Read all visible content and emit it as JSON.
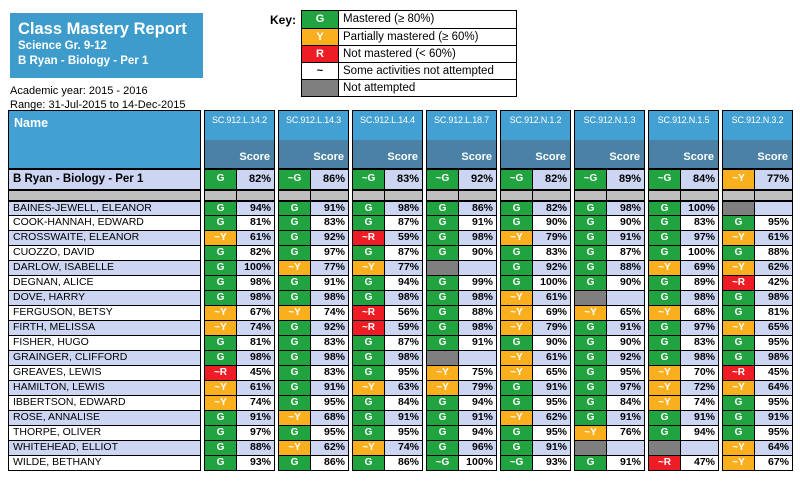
{
  "report": {
    "title": "Class Mastery Report",
    "subtitle1": "Science Gr. 9-12",
    "subtitle2": "B Ryan - Biology - Per 1",
    "academic_year": "Academic year: 2015 - 2016",
    "range": "Range: 31-Jul-2015 to 14-Dec-2015"
  },
  "key": {
    "label": "Key:",
    "items": [
      {
        "badge": "G",
        "color": "#21A33F",
        "text_color": "#FFFFFF",
        "label": "Mastered (≥ 80%)"
      },
      {
        "badge": "Y",
        "color": "#FAAF1E",
        "text_color": "#FFFFFF",
        "label": "Partially mastered (≥ 60%)"
      },
      {
        "badge": "R",
        "color": "#EE1C24",
        "text_color": "#FFFFFF",
        "label": "Not mastered (< 60%)"
      },
      {
        "badge": "~",
        "color": "#FFFFFF",
        "text_color": "#000000",
        "label": "Some activities not attempted"
      },
      {
        "badge": "",
        "color": "#7F7F7F",
        "text_color": "#000000",
        "label": "Not attempted"
      }
    ]
  },
  "colors": {
    "mastered": "#21A33F",
    "partially_mastered": "#FAAF1E",
    "not_mastered": "#EE1C24",
    "not_attempted": "#7F7F7F",
    "divider_gray": "#BFBFBF",
    "row_alt_lavender": "#CCD6F2",
    "header_light_blue": "#42A0D3",
    "header_steel_blue": "#4A81A5",
    "title_blue": "#3E9CCC"
  },
  "table": {
    "name_header": "Name",
    "score_header": "Score",
    "columns": [
      "SC.912.L.14.2",
      "SC.912.L.14.3",
      "SC.912.L.14.4",
      "SC.912.L.18.7",
      "SC.912.N.1.2",
      "SC.912.N.1.3",
      "SC.912.N.1.5",
      "SC.912.N.3.2"
    ],
    "summary": {
      "name": "B Ryan - Biology - Per 1",
      "cells": [
        {
          "rating": "G",
          "score": "82%"
        },
        {
          "rating": "~G",
          "score": "86%"
        },
        {
          "rating": "~G",
          "score": "83%"
        },
        {
          "rating": "~G",
          "score": "92%"
        },
        {
          "rating": "~G",
          "score": "82%"
        },
        {
          "rating": "~G",
          "score": "89%"
        },
        {
          "rating": "~G",
          "score": "84%"
        },
        {
          "rating": "~Y",
          "score": "77%"
        }
      ]
    },
    "students": [
      {
        "name": "BAINES-JEWELL, ELEANOR",
        "cells": [
          {
            "rating": "G",
            "score": "94%"
          },
          {
            "rating": "G",
            "score": "91%"
          },
          {
            "rating": "G",
            "score": "98%"
          },
          {
            "rating": "G",
            "score": "86%"
          },
          {
            "rating": "G",
            "score": "82%"
          },
          {
            "rating": "G",
            "score": "98%"
          },
          {
            "rating": "G",
            "score": "100%"
          },
          {
            "rating": "NA",
            "score": ""
          }
        ]
      },
      {
        "name": "COOK-HANNAH, EDWARD",
        "cells": [
          {
            "rating": "G",
            "score": "81%"
          },
          {
            "rating": "G",
            "score": "83%"
          },
          {
            "rating": "G",
            "score": "87%"
          },
          {
            "rating": "G",
            "score": "91%"
          },
          {
            "rating": "G",
            "score": "90%"
          },
          {
            "rating": "G",
            "score": "90%"
          },
          {
            "rating": "G",
            "score": "83%"
          },
          {
            "rating": "G",
            "score": "95%"
          }
        ]
      },
      {
        "name": "CROSSWAITE, ELEANOR",
        "cells": [
          {
            "rating": "~Y",
            "score": "61%"
          },
          {
            "rating": "G",
            "score": "92%"
          },
          {
            "rating": "~R",
            "score": "59%"
          },
          {
            "rating": "G",
            "score": "98%"
          },
          {
            "rating": "~Y",
            "score": "79%"
          },
          {
            "rating": "G",
            "score": "91%"
          },
          {
            "rating": "G",
            "score": "97%"
          },
          {
            "rating": "~Y",
            "score": "61%"
          }
        ]
      },
      {
        "name": "CUOZZO, DAVID",
        "cells": [
          {
            "rating": "G",
            "score": "82%"
          },
          {
            "rating": "G",
            "score": "97%"
          },
          {
            "rating": "G",
            "score": "87%"
          },
          {
            "rating": "G",
            "score": "90%"
          },
          {
            "rating": "G",
            "score": "83%"
          },
          {
            "rating": "G",
            "score": "87%"
          },
          {
            "rating": "G",
            "score": "100%"
          },
          {
            "rating": "G",
            "score": "88%"
          }
        ]
      },
      {
        "name": "DARLOW, ISABELLE",
        "cells": [
          {
            "rating": "G",
            "score": "100%"
          },
          {
            "rating": "~Y",
            "score": "77%"
          },
          {
            "rating": "~Y",
            "score": "77%"
          },
          {
            "rating": "NA",
            "score": ""
          },
          {
            "rating": "G",
            "score": "92%"
          },
          {
            "rating": "G",
            "score": "88%"
          },
          {
            "rating": "~Y",
            "score": "69%"
          },
          {
            "rating": "~Y",
            "score": "62%"
          }
        ]
      },
      {
        "name": "DEGNAN, ALICE",
        "cells": [
          {
            "rating": "G",
            "score": "98%"
          },
          {
            "rating": "G",
            "score": "91%"
          },
          {
            "rating": "G",
            "score": "94%"
          },
          {
            "rating": "G",
            "score": "99%"
          },
          {
            "rating": "G",
            "score": "100%"
          },
          {
            "rating": "G",
            "score": "90%"
          },
          {
            "rating": "G",
            "score": "89%"
          },
          {
            "rating": "~R",
            "score": "42%"
          }
        ]
      },
      {
        "name": "DOVE, HARRY",
        "cells": [
          {
            "rating": "G",
            "score": "98%"
          },
          {
            "rating": "G",
            "score": "98%"
          },
          {
            "rating": "G",
            "score": "98%"
          },
          {
            "rating": "G",
            "score": "98%"
          },
          {
            "rating": "~Y",
            "score": "61%"
          },
          {
            "rating": "NA",
            "score": ""
          },
          {
            "rating": "G",
            "score": "98%"
          },
          {
            "rating": "G",
            "score": "98%"
          }
        ]
      },
      {
        "name": "FERGUSON, BETSY",
        "cells": [
          {
            "rating": "~Y",
            "score": "67%"
          },
          {
            "rating": "~Y",
            "score": "74%"
          },
          {
            "rating": "~R",
            "score": "56%"
          },
          {
            "rating": "G",
            "score": "88%"
          },
          {
            "rating": "~Y",
            "score": "69%"
          },
          {
            "rating": "~Y",
            "score": "65%"
          },
          {
            "rating": "~Y",
            "score": "68%"
          },
          {
            "rating": "G",
            "score": "81%"
          }
        ]
      },
      {
        "name": "FIRTH, MELISSA",
        "cells": [
          {
            "rating": "~Y",
            "score": "74%"
          },
          {
            "rating": "G",
            "score": "92%"
          },
          {
            "rating": "~R",
            "score": "59%"
          },
          {
            "rating": "G",
            "score": "98%"
          },
          {
            "rating": "~Y",
            "score": "79%"
          },
          {
            "rating": "G",
            "score": "91%"
          },
          {
            "rating": "G",
            "score": "97%"
          },
          {
            "rating": "~Y",
            "score": "65%"
          }
        ]
      },
      {
        "name": "FISHER, HUGO",
        "cells": [
          {
            "rating": "G",
            "score": "81%"
          },
          {
            "rating": "G",
            "score": "83%"
          },
          {
            "rating": "G",
            "score": "87%"
          },
          {
            "rating": "G",
            "score": "91%"
          },
          {
            "rating": "G",
            "score": "90%"
          },
          {
            "rating": "G",
            "score": "90%"
          },
          {
            "rating": "G",
            "score": "83%"
          },
          {
            "rating": "G",
            "score": "95%"
          }
        ]
      },
      {
        "name": "GRAINGER, CLIFFORD",
        "cells": [
          {
            "rating": "G",
            "score": "98%"
          },
          {
            "rating": "G",
            "score": "98%"
          },
          {
            "rating": "G",
            "score": "98%"
          },
          {
            "rating": "NA",
            "score": ""
          },
          {
            "rating": "~Y",
            "score": "61%"
          },
          {
            "rating": "G",
            "score": "92%"
          },
          {
            "rating": "G",
            "score": "98%"
          },
          {
            "rating": "G",
            "score": "98%"
          }
        ]
      },
      {
        "name": "GREAVES, LEWIS",
        "cells": [
          {
            "rating": "~R",
            "score": "45%"
          },
          {
            "rating": "G",
            "score": "83%"
          },
          {
            "rating": "G",
            "score": "95%"
          },
          {
            "rating": "~Y",
            "score": "75%"
          },
          {
            "rating": "~Y",
            "score": "65%"
          },
          {
            "rating": "G",
            "score": "95%"
          },
          {
            "rating": "~Y",
            "score": "70%"
          },
          {
            "rating": "~R",
            "score": "45%"
          }
        ]
      },
      {
        "name": "HAMILTON, LEWIS",
        "cells": [
          {
            "rating": "~Y",
            "score": "61%"
          },
          {
            "rating": "G",
            "score": "91%"
          },
          {
            "rating": "~Y",
            "score": "63%"
          },
          {
            "rating": "~Y",
            "score": "79%"
          },
          {
            "rating": "G",
            "score": "91%"
          },
          {
            "rating": "G",
            "score": "97%"
          },
          {
            "rating": "~Y",
            "score": "72%"
          },
          {
            "rating": "~Y",
            "score": "64%"
          }
        ]
      },
      {
        "name": "IBBERTSON, EDWARD",
        "cells": [
          {
            "rating": "~Y",
            "score": "74%"
          },
          {
            "rating": "G",
            "score": "95%"
          },
          {
            "rating": "G",
            "score": "84%"
          },
          {
            "rating": "G",
            "score": "94%"
          },
          {
            "rating": "G",
            "score": "95%"
          },
          {
            "rating": "G",
            "score": "84%"
          },
          {
            "rating": "~Y",
            "score": "74%"
          },
          {
            "rating": "G",
            "score": "95%"
          }
        ]
      },
      {
        "name": "ROSE, ANNALISE",
        "cells": [
          {
            "rating": "G",
            "score": "91%"
          },
          {
            "rating": "~Y",
            "score": "68%"
          },
          {
            "rating": "G",
            "score": "91%"
          },
          {
            "rating": "G",
            "score": "91%"
          },
          {
            "rating": "~Y",
            "score": "62%"
          },
          {
            "rating": "G",
            "score": "91%"
          },
          {
            "rating": "G",
            "score": "91%"
          },
          {
            "rating": "G",
            "score": "91%"
          }
        ]
      },
      {
        "name": "THORPE, OLIVER",
        "cells": [
          {
            "rating": "G",
            "score": "97%"
          },
          {
            "rating": "G",
            "score": "95%"
          },
          {
            "rating": "G",
            "score": "95%"
          },
          {
            "rating": "G",
            "score": "94%"
          },
          {
            "rating": "G",
            "score": "95%"
          },
          {
            "rating": "~Y",
            "score": "76%"
          },
          {
            "rating": "G",
            "score": "94%"
          },
          {
            "rating": "G",
            "score": "95%"
          }
        ]
      },
      {
        "name": "WHITEHEAD, ELLIOT",
        "cells": [
          {
            "rating": "G",
            "score": "88%"
          },
          {
            "rating": "~Y",
            "score": "62%"
          },
          {
            "rating": "~Y",
            "score": "74%"
          },
          {
            "rating": "G",
            "score": "96%"
          },
          {
            "rating": "G",
            "score": "91%"
          },
          {
            "rating": "NA",
            "score": ""
          },
          {
            "rating": "NA",
            "score": ""
          },
          {
            "rating": "~Y",
            "score": "64%"
          }
        ]
      },
      {
        "name": "WILDE, BETHANY",
        "cells": [
          {
            "rating": "G",
            "score": "93%"
          },
          {
            "rating": "G",
            "score": "86%"
          },
          {
            "rating": "G",
            "score": "86%"
          },
          {
            "rating": "~G",
            "score": "100%"
          },
          {
            "rating": "~G",
            "score": "93%"
          },
          {
            "rating": "G",
            "score": "91%"
          },
          {
            "rating": "~R",
            "score": "47%"
          },
          {
            "rating": "~Y",
            "score": "67%"
          }
        ]
      }
    ]
  }
}
